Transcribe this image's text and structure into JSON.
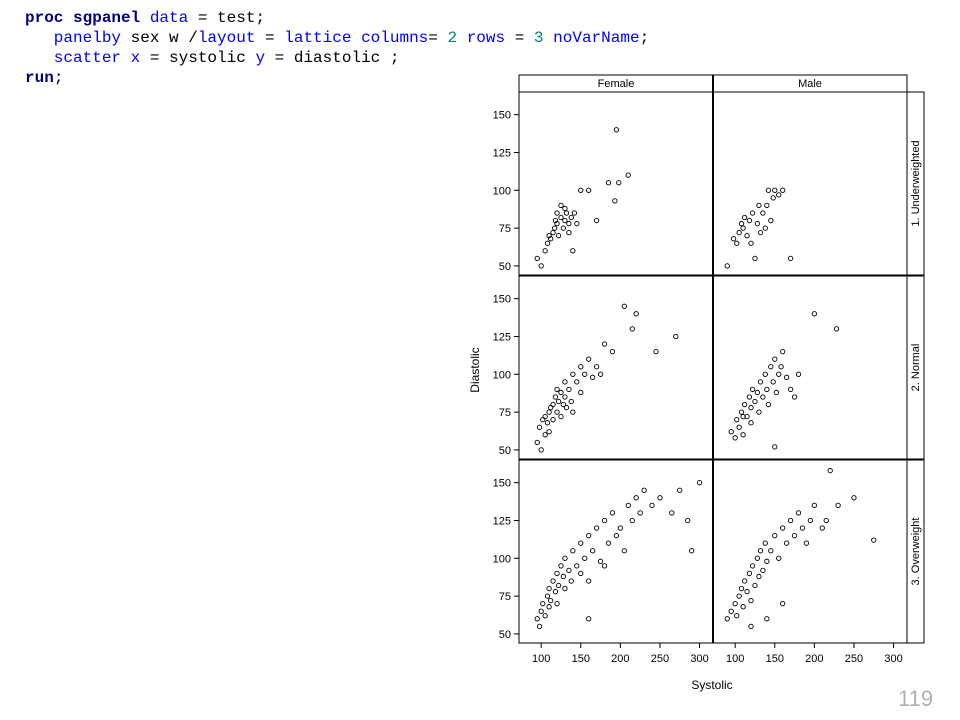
{
  "code": {
    "lines": [
      [
        {
          "text": "proc sgpanel",
          "style": "kw"
        },
        {
          "text": " ",
          "style": "plain"
        },
        {
          "text": "data",
          "style": "opt"
        },
        {
          "text": " = test;",
          "style": "plain"
        }
      ],
      [
        {
          "text": "   panelby",
          "style": "opt"
        },
        {
          "text": " sex w /",
          "style": "plain"
        },
        {
          "text": "layout",
          "style": "opt"
        },
        {
          "text": " = ",
          "style": "plain"
        },
        {
          "text": "lattice columns",
          "style": "opt"
        },
        {
          "text": "= ",
          "style": "plain"
        },
        {
          "text": "2",
          "style": "num"
        },
        {
          "text": " ",
          "style": "plain"
        },
        {
          "text": "rows",
          "style": "opt"
        },
        {
          "text": " = ",
          "style": "plain"
        },
        {
          "text": "3",
          "style": "num"
        },
        {
          "text": " ",
          "style": "plain"
        },
        {
          "text": "noVarName",
          "style": "opt"
        },
        {
          "text": ";",
          "style": "plain"
        }
      ],
      [
        {
          "text": "   scatter x",
          "style": "opt"
        },
        {
          "text": " = systolic ",
          "style": "plain"
        },
        {
          "text": "y",
          "style": "opt"
        },
        {
          "text": " = diastolic ;",
          "style": "plain"
        }
      ],
      [
        {
          "text": "run",
          "style": "kw"
        },
        {
          "text": ";",
          "style": "plain"
        }
      ]
    ]
  },
  "page_number": "119",
  "chart_data": {
    "type": "scatter",
    "x_label": "Systolic",
    "y_label": "Diastolic",
    "columns": [
      "Female",
      "Male"
    ],
    "rows": [
      "1. Underweighted",
      "2. Normal",
      "3. Overweight"
    ],
    "xlim": [
      72,
      317
    ],
    "ylim": [
      44,
      165
    ],
    "xticks": [
      100,
      150,
      200,
      250,
      300
    ],
    "yticks": [
      50,
      75,
      100,
      125,
      150
    ],
    "marker_color": "#000000",
    "panels": [
      {
        "x": [
          95,
          100,
          105,
          108,
          110,
          112,
          115,
          117,
          118,
          120,
          120,
          122,
          125,
          125,
          128,
          130,
          130,
          132,
          135,
          135,
          138,
          140,
          142,
          145,
          150,
          160,
          170,
          185,
          193,
          195,
          210,
          198
        ],
        "y": [
          55,
          50,
          60,
          65,
          70,
          68,
          72,
          75,
          80,
          78,
          85,
          70,
          82,
          90,
          75,
          80,
          88,
          85,
          72,
          78,
          82,
          60,
          85,
          78,
          100,
          100,
          80,
          105,
          93,
          140,
          110,
          105
        ]
      },
      {
        "x": [
          90,
          98,
          102,
          105,
          108,
          110,
          112,
          115,
          118,
          120,
          122,
          125,
          128,
          130,
          132,
          135,
          138,
          140,
          142,
          145,
          148,
          150,
          155,
          160,
          170
        ],
        "y": [
          50,
          68,
          65,
          72,
          78,
          75,
          82,
          70,
          80,
          65,
          85,
          55,
          78,
          90,
          72,
          85,
          75,
          90,
          100,
          80,
          95,
          100,
          97,
          100,
          55
        ]
      },
      {
        "x": [
          95,
          98,
          100,
          102,
          105,
          105,
          108,
          110,
          110,
          112,
          115,
          115,
          118,
          120,
          120,
          122,
          125,
          125,
          128,
          130,
          130,
          132,
          135,
          138,
          140,
          140,
          145,
          150,
          150,
          155,
          160,
          165,
          170,
          175,
          180,
          190,
          205,
          215,
          220,
          245,
          270
        ],
        "y": [
          55,
          65,
          50,
          70,
          60,
          72,
          68,
          75,
          62,
          78,
          70,
          80,
          85,
          75,
          90,
          82,
          72,
          88,
          80,
          95,
          85,
          78,
          90,
          82,
          100,
          75,
          95,
          105,
          88,
          100,
          110,
          98,
          105,
          100,
          120,
          115,
          145,
          130,
          140,
          115,
          125
        ]
      },
      {
        "x": [
          95,
          100,
          102,
          105,
          108,
          110,
          112,
          115,
          118,
          120,
          120,
          122,
          125,
          128,
          130,
          132,
          135,
          138,
          140,
          142,
          145,
          148,
          150,
          152,
          155,
          158,
          160,
          165,
          170,
          175,
          180,
          200,
          228,
          150,
          110
        ],
        "y": [
          62,
          58,
          70,
          65,
          75,
          60,
          80,
          72,
          85,
          78,
          68,
          90,
          82,
          88,
          75,
          95,
          85,
          100,
          90,
          80,
          105,
          95,
          110,
          88,
          100,
          105,
          115,
          98,
          90,
          85,
          100,
          140,
          130,
          52,
          72
        ]
      },
      {
        "x": [
          95,
          98,
          100,
          102,
          105,
          108,
          110,
          110,
          112,
          115,
          118,
          120,
          120,
          122,
          125,
          128,
          130,
          130,
          135,
          138,
          140,
          145,
          150,
          150,
          155,
          160,
          160,
          165,
          170,
          175,
          180,
          180,
          185,
          190,
          195,
          200,
          205,
          210,
          215,
          220,
          225,
          230,
          240,
          250,
          265,
          275,
          285,
          290,
          300,
          160
        ],
        "y": [
          60,
          55,
          65,
          70,
          62,
          75,
          68,
          80,
          72,
          85,
          78,
          90,
          70,
          82,
          95,
          88,
          100,
          80,
          92,
          85,
          105,
          95,
          110,
          90,
          100,
          115,
          85,
          105,
          120,
          98,
          125,
          95,
          110,
          130,
          115,
          120,
          105,
          135,
          125,
          140,
          130,
          145,
          135,
          140,
          130,
          145,
          125,
          105,
          150,
          60
        ]
      },
      {
        "x": [
          90,
          95,
          100,
          102,
          105,
          108,
          110,
          112,
          115,
          118,
          120,
          122,
          125,
          128,
          130,
          132,
          135,
          138,
          140,
          145,
          150,
          155,
          160,
          165,
          170,
          175,
          180,
          185,
          190,
          195,
          200,
          210,
          220,
          230,
          250,
          275,
          120,
          160,
          140,
          215
        ],
        "y": [
          60,
          65,
          70,
          62,
          75,
          80,
          68,
          85,
          78,
          90,
          72,
          95,
          82,
          100,
          88,
          105,
          92,
          110,
          98,
          105,
          115,
          100,
          120,
          110,
          125,
          115,
          130,
          120,
          110,
          125,
          135,
          120,
          158,
          135,
          140,
          112,
          55,
          70,
          60,
          125
        ]
      }
    ]
  }
}
